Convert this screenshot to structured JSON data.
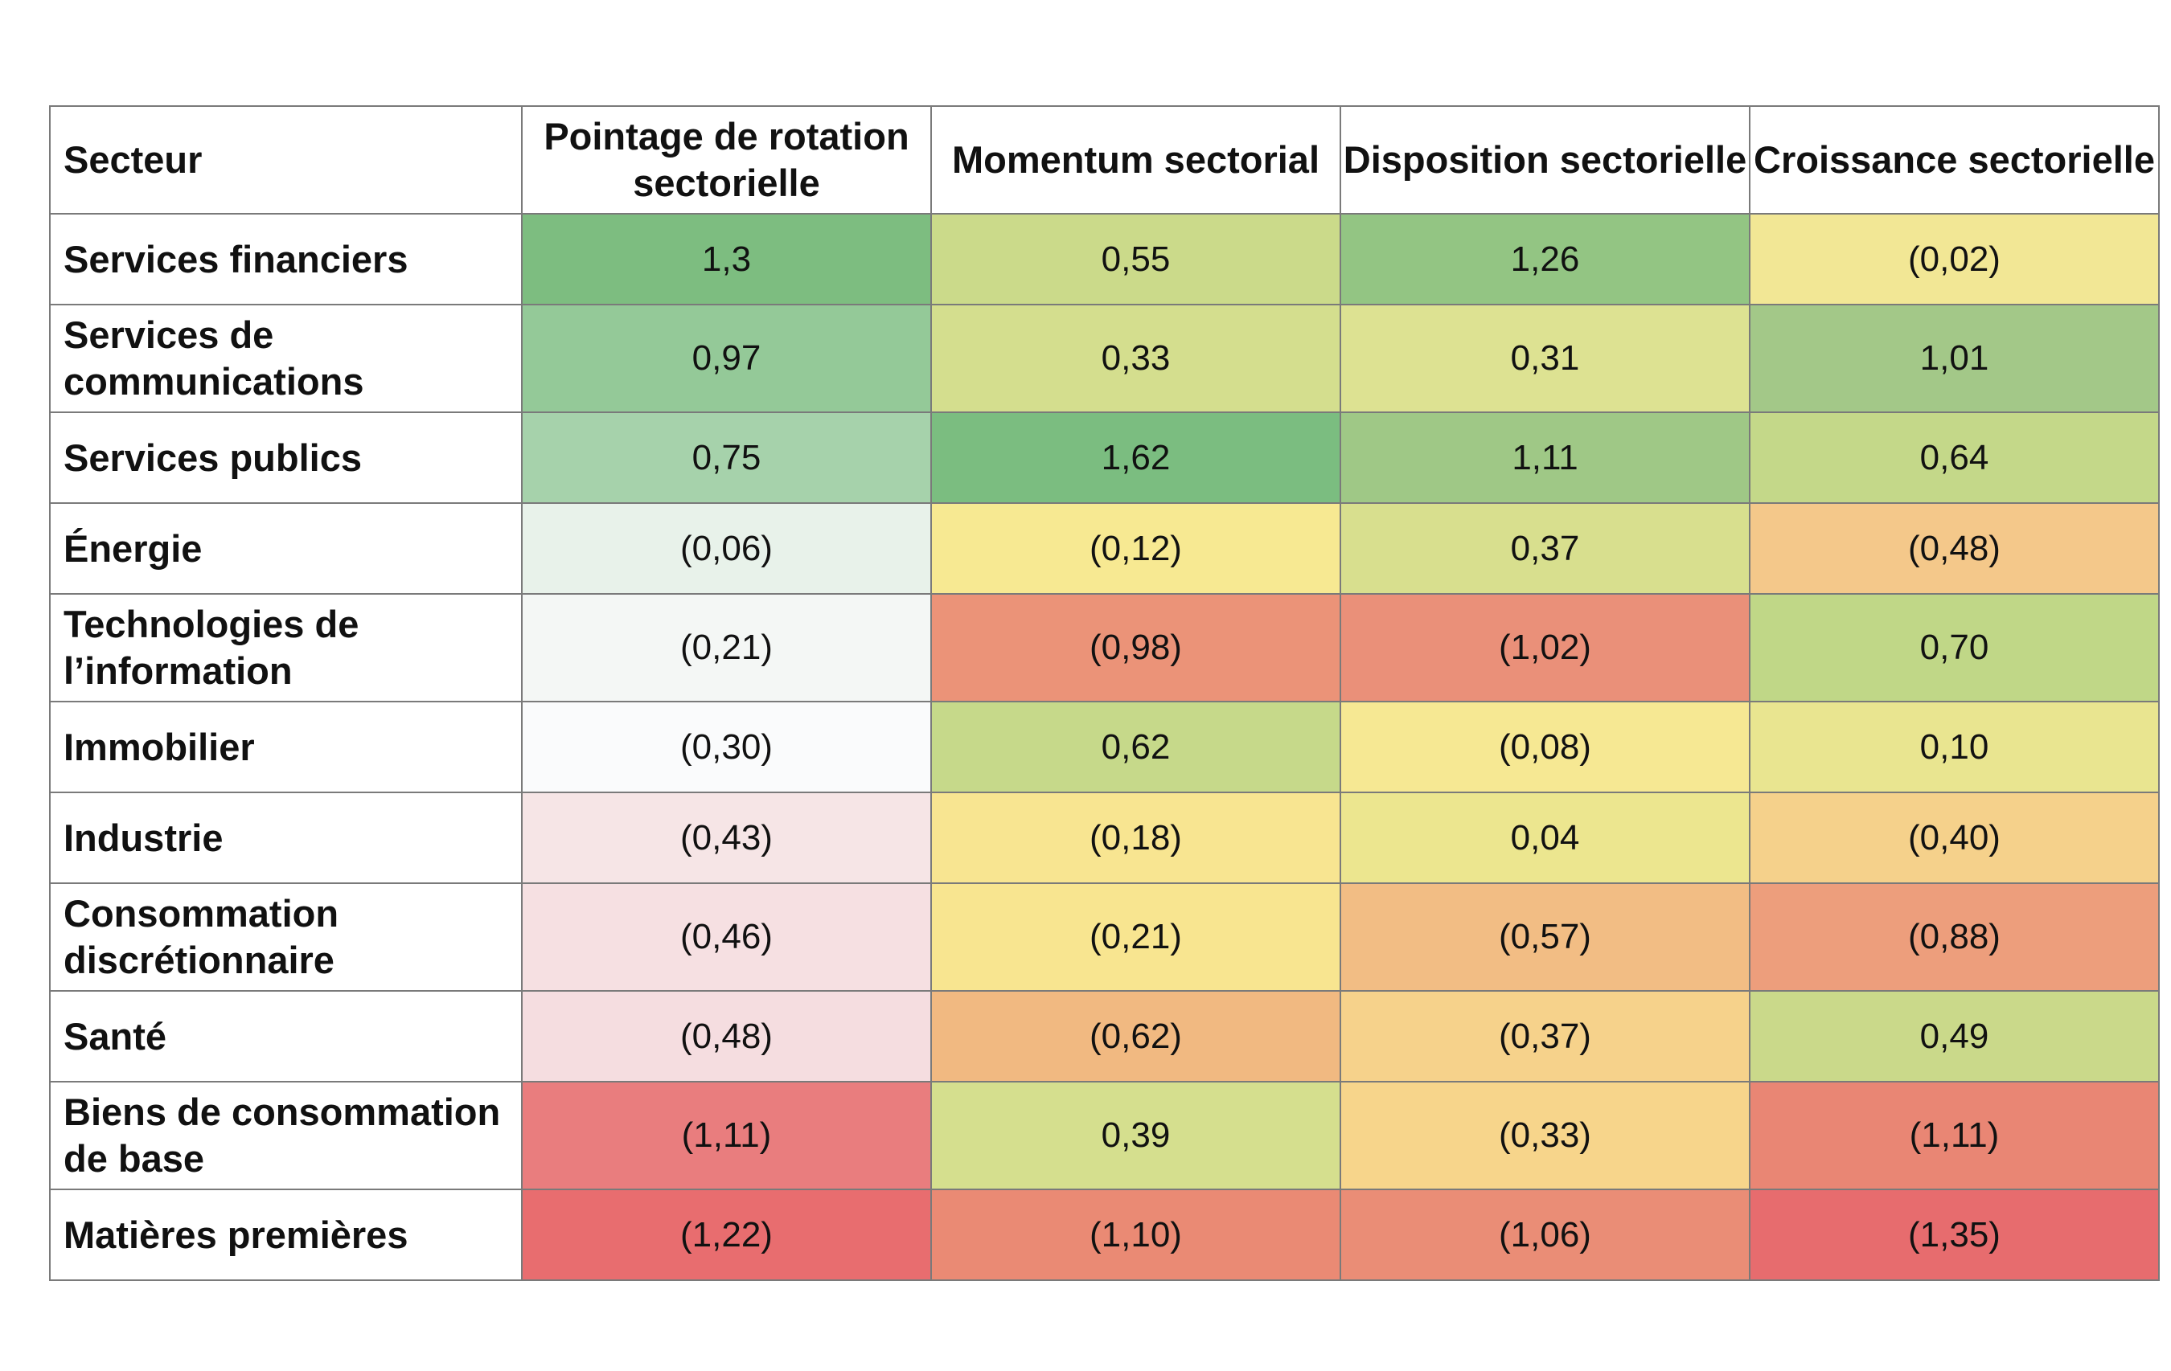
{
  "chart_data": {
    "type": "heatmap",
    "columns": [
      "Secteur",
      "Pointage de rotation sectorielle",
      "Momentum sectorial",
      "Disposition sectorielle",
      "Croissance sectorielle"
    ],
    "rows": [
      {
        "sector": "Services financiers",
        "values": [
          1.3,
          0.55,
          1.26,
          -0.02
        ],
        "labels": [
          "1,3",
          "0,55",
          "1,26",
          "(0,02)"
        ],
        "colors": [
          "#7dbd80",
          "#cbda8a",
          "#93c583",
          "#f2e795"
        ],
        "tall": false
      },
      {
        "sector": "Services de communications",
        "values": [
          0.97,
          0.33,
          0.31,
          1.01
        ],
        "labels": [
          "0,97",
          "0,33",
          "0,31",
          "1,01"
        ],
        "colors": [
          "#94c998",
          "#d4de8e",
          "#dde292",
          "#a3c888"
        ],
        "tall": true
      },
      {
        "sector": "Services publics",
        "values": [
          0.75,
          1.62,
          1.11,
          0.64
        ],
        "labels": [
          "0,75",
          "1,62",
          "1,11",
          "0,64"
        ],
        "colors": [
          "#a6d2ab",
          "#7bbd80",
          "#9fc886",
          "#c4d889"
        ],
        "tall": false
      },
      {
        "sector": "Énergie",
        "values": [
          -0.06,
          -0.12,
          0.37,
          -0.48
        ],
        "labels": [
          "(0,06)",
          "(0,12)",
          "0,37",
          "(0,48)"
        ],
        "colors": [
          "#e8f2ea",
          "#f7e992",
          "#d8df8e",
          "#f4c88a"
        ],
        "tall": false
      },
      {
        "sector": "Technologies de l’information",
        "values": [
          -0.21,
          -0.98,
          -1.02,
          0.7
        ],
        "labels": [
          "(0,21)",
          "(0,98)",
          "(1,02)",
          "0,70"
        ],
        "colors": [
          "#f4f7f5",
          "#eb9378",
          "#ea9079",
          "#c0d787"
        ],
        "tall": true
      },
      {
        "sector": "Immobilier",
        "values": [
          -0.3,
          0.62,
          -0.08,
          0.1
        ],
        "labels": [
          "(0,30)",
          "0,62",
          "(0,08)",
          "0,10"
        ],
        "colors": [
          "#fafbfc",
          "#c6d98a",
          "#f6e893",
          "#e9e590"
        ],
        "tall": false
      },
      {
        "sector": "Industrie",
        "values": [
          -0.43,
          -0.18,
          0.04,
          -0.4
        ],
        "labels": [
          "(0,43)",
          "(0,18)",
          "0,04",
          "(0,40)"
        ],
        "colors": [
          "#f6e5e6",
          "#f8e591",
          "#ece68f",
          "#f5d18b"
        ],
        "tall": false
      },
      {
        "sector": "Consommation discrétionnaire",
        "values": [
          -0.46,
          -0.21,
          -0.57,
          -0.88
        ],
        "labels": [
          "(0,46)",
          "(0,21)",
          "(0,57)",
          "(0,88)"
        ],
        "colors": [
          "#f6e0e2",
          "#f8e590",
          "#f2bd84",
          "#ed9e7c"
        ],
        "tall": true
      },
      {
        "sector": "Santé",
        "values": [
          -0.48,
          -0.62,
          -0.37,
          0.49
        ],
        "labels": [
          "(0,48)",
          "(0,62)",
          "(0,37)",
          "0,49"
        ],
        "colors": [
          "#f5dde0",
          "#f1b981",
          "#f6d28b",
          "#cad98a"
        ],
        "tall": false
      },
      {
        "sector": "Biens de consommation de base",
        "values": [
          -1.11,
          0.39,
          -0.33,
          -1.11
        ],
        "labels": [
          "(1,11)",
          "0,39",
          "(0,33)",
          "(1,11)"
        ],
        "colors": [
          "#e97d7e",
          "#d5df8e",
          "#f7d58b",
          "#e98674"
        ],
        "tall": true
      },
      {
        "sector": "Matières premières",
        "values": [
          -1.22,
          -1.1,
          -1.06,
          -1.35
        ],
        "labels": [
          "(1,22)",
          "(1,10)",
          "(1,06)",
          "(1,35)"
        ],
        "colors": [
          "#e86d6f",
          "#ea8a74",
          "#ea8d76",
          "#e76c6e"
        ],
        "tall": false
      }
    ]
  }
}
